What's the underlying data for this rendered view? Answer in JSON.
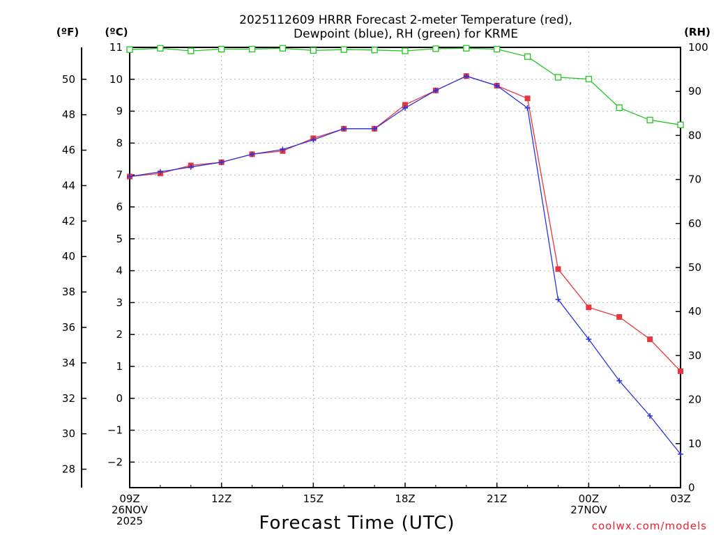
{
  "chart_data": {
    "type": "line",
    "title_line1": "2025112609 HRRR Forecast 2-meter Temperature (red),",
    "title_line2": "Dewpoint (blue), RH (green) for KRME",
    "xlabel": "Forecast Time (UTC)",
    "credit": "coolwx.com/models",
    "units": {
      "fahrenheit": "(ºF)",
      "celsius": "(ºC)",
      "rh": "(RH)"
    },
    "x_hours": [
      0,
      1,
      2,
      3,
      4,
      5,
      6,
      7,
      8,
      9,
      10,
      11,
      12,
      13,
      14,
      15,
      16,
      17,
      18
    ],
    "x_range": [
      0,
      18
    ],
    "x_ticks": [
      {
        "hour": 0,
        "lines": [
          "09Z",
          "26NOV",
          "2025"
        ]
      },
      {
        "hour": 3,
        "lines": [
          "12Z"
        ]
      },
      {
        "hour": 6,
        "lines": [
          "15Z"
        ]
      },
      {
        "hour": 9,
        "lines": [
          "18Z"
        ]
      },
      {
        "hour": 12,
        "lines": [
          "21Z"
        ]
      },
      {
        "hour": 15,
        "lines": [
          "00Z",
          "27NOV"
        ]
      },
      {
        "hour": 18,
        "lines": [
          "03Z"
        ]
      }
    ],
    "celsius_axis": {
      "range": [
        -2.8,
        11
      ],
      "ticks": [
        "−2",
        "−1",
        "0",
        "1",
        "2",
        "3",
        "4",
        "5",
        "6",
        "7",
        "8",
        "9",
        "10",
        "11"
      ]
    },
    "fahrenheit_axis": {
      "ticks": [
        "28",
        "30",
        "32",
        "34",
        "36",
        "38",
        "40",
        "42",
        "44",
        "46",
        "48",
        "50"
      ]
    },
    "rh_axis": {
      "range": [
        0,
        100
      ],
      "ticks": [
        "0",
        "10",
        "20",
        "30",
        "40",
        "50",
        "60",
        "70",
        "80",
        "90",
        "100"
      ]
    },
    "series": [
      {
        "name": "Temperature",
        "color": "#e8363e",
        "marker": "filled-square",
        "axis": "celsius",
        "values": [
          6.95,
          7.05,
          7.3,
          7.4,
          7.65,
          7.75,
          8.15,
          8.45,
          8.45,
          9.2,
          9.65,
          10.1,
          9.8,
          9.4,
          4.05,
          2.85,
          2.55,
          1.85,
          0.85
        ]
      },
      {
        "name": "Dewpoint",
        "color": "#2a33e0",
        "marker": "plus",
        "axis": "celsius",
        "values": [
          6.95,
          7.1,
          7.25,
          7.4,
          7.65,
          7.8,
          8.1,
          8.45,
          8.45,
          9.1,
          9.65,
          10.1,
          9.8,
          9.1,
          3.1,
          1.85,
          0.55,
          -0.55,
          -1.75
        ]
      },
      {
        "name": "RH",
        "color": "#1ec81e",
        "marker": "open-square",
        "axis": "rh",
        "values": [
          99.5,
          99.8,
          99.2,
          99.6,
          99.6,
          99.8,
          99.3,
          99.5,
          99.4,
          99.2,
          99.7,
          99.8,
          99.6,
          97.9,
          93.2,
          92.8,
          86.3,
          83.5,
          82.4
        ]
      }
    ]
  }
}
